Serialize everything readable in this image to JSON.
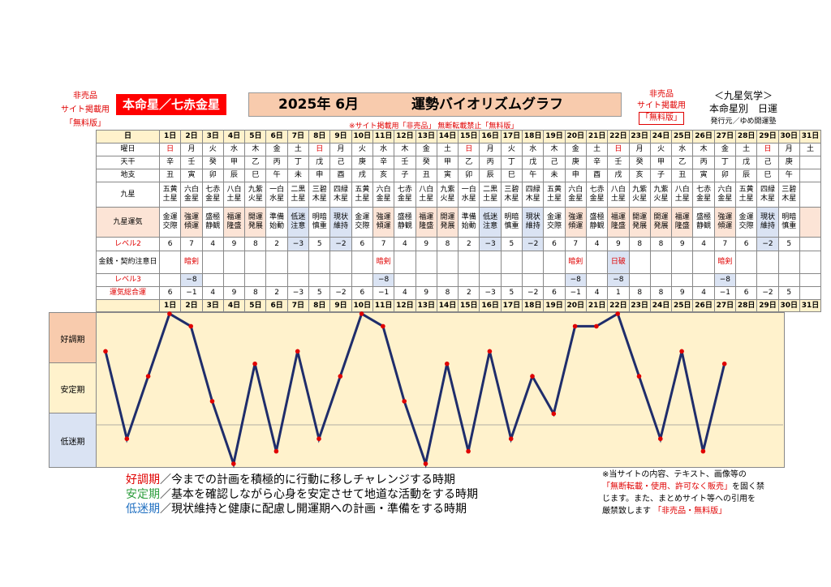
{
  "header": {
    "left_notice": [
      "非売品",
      "サイト掲載用",
      "「無料版」"
    ],
    "honmei": "本命星／七赤金星",
    "title_year": "2025年 6月",
    "title_name": "運勢バイオリズムグラフ",
    "sub_notice": "※サイト掲載用「非売品」 無断転載禁止「無料版」",
    "right_notice": [
      "非売品",
      "サイト掲載用",
      "「無料版」"
    ],
    "kyusei_title": "＜九星気学＞",
    "kyusei_sub": "本命星別　日運",
    "publisher": "発行元／ゆめ開運塾"
  },
  "table": {
    "labels": {
      "day": "日",
      "weekday": "曜日",
      "kan": "天干",
      "shi": "地支",
      "star": "九星",
      "unki": "九星運気",
      "lv2": "レベル2",
      "money": "金銭・契約注意日",
      "lv3": "レベル3",
      "total": "運気総合運"
    },
    "days": [
      "1日",
      "2日",
      "3日",
      "4日",
      "5日",
      "6日",
      "7日",
      "8日",
      "9日",
      "10日",
      "11日",
      "12日",
      "13日",
      "14日",
      "15日",
      "16日",
      "17日",
      "18日",
      "19日",
      "20日",
      "21日",
      "22日",
      "23日",
      "24日",
      "25日",
      "26日",
      "27日",
      "28日",
      "29日",
      "30日",
      "31日"
    ],
    "weekdays": [
      "日",
      "月",
      "火",
      "水",
      "木",
      "金",
      "土",
      "日",
      "月",
      "火",
      "水",
      "木",
      "金",
      "土",
      "日",
      "月",
      "火",
      "水",
      "木",
      "金",
      "土",
      "日",
      "月",
      "火",
      "水",
      "木",
      "金",
      "土",
      "日",
      "月",
      "土"
    ],
    "kan": [
      "辛",
      "壬",
      "癸",
      "甲",
      "乙",
      "丙",
      "丁",
      "戊",
      "己",
      "庚",
      "辛",
      "壬",
      "癸",
      "甲",
      "乙",
      "丙",
      "丁",
      "戊",
      "己",
      "庚",
      "辛",
      "壬",
      "癸",
      "甲",
      "乙",
      "丙",
      "丁",
      "戊",
      "己",
      "庚",
      ""
    ],
    "shi": [
      "丑",
      "寅",
      "卯",
      "辰",
      "巳",
      "午",
      "未",
      "申",
      "酉",
      "戌",
      "亥",
      "子",
      "丑",
      "寅",
      "卯",
      "辰",
      "巳",
      "午",
      "未",
      "申",
      "酉",
      "戌",
      "亥",
      "子",
      "丑",
      "寅",
      "卯",
      "辰",
      "巳",
      "午",
      ""
    ],
    "stars": [
      [
        "五黄",
        "土星"
      ],
      [
        "六白",
        "金星"
      ],
      [
        "七赤",
        "金星"
      ],
      [
        "八白",
        "土星"
      ],
      [
        "九紫",
        "火星"
      ],
      [
        "一白",
        "水星"
      ],
      [
        "二黒",
        "土星"
      ],
      [
        "三碧",
        "木星"
      ],
      [
        "四緑",
        "木星"
      ],
      [
        "五黄",
        "土星"
      ],
      [
        "六白",
        "金星"
      ],
      [
        "七赤",
        "金星"
      ],
      [
        "八白",
        "土星"
      ],
      [
        "九紫",
        "火星"
      ],
      [
        "一白",
        "水星"
      ],
      [
        "二黒",
        "土星"
      ],
      [
        "三碧",
        "木星"
      ],
      [
        "四緑",
        "木星"
      ],
      [
        "五黄",
        "土星"
      ],
      [
        "六白",
        "金星"
      ],
      [
        "七赤",
        "金星"
      ],
      [
        "八白",
        "土星"
      ],
      [
        "九紫",
        "火星"
      ],
      [
        "九紫",
        "火星"
      ],
      [
        "八白",
        "土星"
      ],
      [
        "七赤",
        "金星"
      ],
      [
        "六白",
        "金星"
      ],
      [
        "五黄",
        "土星"
      ],
      [
        "四緑",
        "木星"
      ],
      [
        "三碧",
        "木星"
      ],
      [
        "",
        ""
      ]
    ],
    "unki": [
      [
        "金運",
        "交際"
      ],
      [
        "強運",
        "傾運"
      ],
      [
        "盛極",
        "静観"
      ],
      [
        "福運",
        "隆盛"
      ],
      [
        "開運",
        "発展"
      ],
      [
        "準備",
        "始動"
      ],
      [
        "低迷",
        "注意"
      ],
      [
        "明暗",
        "慎重"
      ],
      [
        "現状",
        "維持"
      ],
      [
        "金運",
        "交際"
      ],
      [
        "強運",
        "傾運"
      ],
      [
        "盛極",
        "静観"
      ],
      [
        "福運",
        "隆盛"
      ],
      [
        "開運",
        "発展"
      ],
      [
        "準備",
        "始動"
      ],
      [
        "低迷",
        "注意"
      ],
      [
        "明暗",
        "慎重"
      ],
      [
        "現状",
        "維持"
      ],
      [
        "金運",
        "交際"
      ],
      [
        "強運",
        "傾運"
      ],
      [
        "盛極",
        "静観"
      ],
      [
        "福運",
        "隆盛"
      ],
      [
        "開運",
        "発展"
      ],
      [
        "開運",
        "発展"
      ],
      [
        "福運",
        "隆盛"
      ],
      [
        "盛極",
        "静観"
      ],
      [
        "強運",
        "傾運"
      ],
      [
        "金運",
        "交際"
      ],
      [
        "現状",
        "維持"
      ],
      [
        "明暗",
        "慎重"
      ],
      [
        "",
        ""
      ]
    ],
    "lv2": [
      "6",
      "7",
      "4",
      "9",
      "8",
      "2",
      "−3",
      "5",
      "−2",
      "6",
      "7",
      "4",
      "9",
      "8",
      "2",
      "−3",
      "5",
      "−2",
      "6",
      "7",
      "4",
      "9",
      "8",
      "8",
      "9",
      "4",
      "7",
      "6",
      "−2",
      "5",
      ""
    ],
    "money": [
      "",
      "暗剣",
      "",
      "",
      "",
      "",
      "",
      "",
      "",
      "",
      "暗剣",
      "",
      "",
      "",
      "",
      "",
      "",
      "",
      "",
      "暗剣",
      "",
      "日破",
      "",
      "",
      "",
      "",
      "暗剣",
      "",
      "",
      "",
      ""
    ],
    "lv3": [
      "",
      "−8",
      "",
      "",
      "",
      "",
      "",
      "",
      "",
      "",
      "−8",
      "",
      "",
      "",
      "",
      "",
      "",
      "",
      "",
      "−8",
      "",
      "−8",
      "",
      "",
      "",
      "",
      "−8",
      "",
      "",
      "",
      ""
    ],
    "total": [
      "6",
      "−1",
      "4",
      "9",
      "8",
      "2",
      "−3",
      "5",
      "−2",
      "6",
      "−1",
      "4",
      "9",
      "8",
      "2",
      "−3",
      "5",
      "−2",
      "6",
      "−1",
      "4",
      "1",
      "8",
      "8",
      "9",
      "4",
      "−1",
      "6",
      "−2",
      "5",
      ""
    ]
  },
  "zones": {
    "good": "好調期",
    "stable": "安定期",
    "low": "低迷期"
  },
  "legend": {
    "good_term": "好調期",
    "good_text": "／今までの計画を積極的に行動に移しチャレンジする時期",
    "stable_term": "安定期",
    "stable_text": "／基本を確認しながら心身を安定させて地道な活動をする時期",
    "low_term": "低迷期",
    "low_text": "／現状維持と健康に配慮し開運期への計画・準備をする時期"
  },
  "copyright": {
    "line1": "※当サイトの内容、テキスト、画像等の",
    "line2_red": "「無断転載・使用、許可なく販売」",
    "line2_tail": "を固く禁",
    "line3": "じます。また、まとめサイト等への引用を",
    "line4": "厳禁致します",
    "line4_red": "「非売品・無料版」"
  },
  "chart_data": {
    "type": "line",
    "x": [
      1,
      2,
      3,
      4,
      5,
      6,
      7,
      8,
      9,
      10,
      11,
      12,
      13,
      14,
      15,
      16,
      17,
      18,
      19,
      20,
      21,
      22,
      23,
      24,
      25,
      26,
      27,
      28,
      29,
      30
    ],
    "values": [
      6,
      -1,
      4,
      9,
      8,
      2,
      -3,
      5,
      -2,
      6,
      -1,
      4,
      9,
      8,
      2,
      -3,
      5,
      -2,
      6,
      -1,
      4,
      1,
      8,
      8,
      9,
      4,
      -1,
      6,
      -2,
      5
    ],
    "ylim": [
      -3,
      9
    ],
    "colors": {
      "line": "#1f2d6b",
      "marker": "#e00000"
    }
  }
}
